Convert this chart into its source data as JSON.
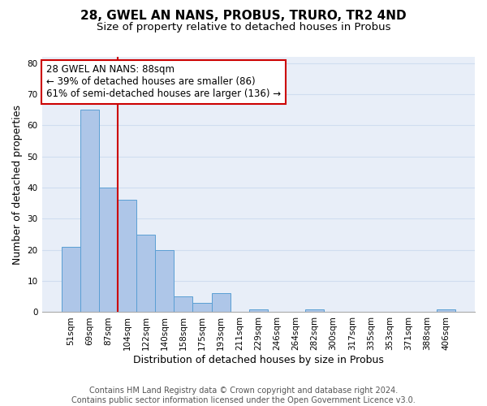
{
  "title": "28, GWEL AN NANS, PROBUS, TRURO, TR2 4ND",
  "subtitle": "Size of property relative to detached houses in Probus",
  "xlabel": "Distribution of detached houses by size in Probus",
  "ylabel": "Number of detached properties",
  "bar_labels": [
    "51sqm",
    "69sqm",
    "87sqm",
    "104sqm",
    "122sqm",
    "140sqm",
    "158sqm",
    "175sqm",
    "193sqm",
    "211sqm",
    "229sqm",
    "246sqm",
    "264sqm",
    "282sqm",
    "300sqm",
    "317sqm",
    "335sqm",
    "353sqm",
    "371sqm",
    "388sqm",
    "406sqm"
  ],
  "bar_values": [
    21,
    65,
    40,
    36,
    25,
    20,
    5,
    3,
    6,
    0,
    1,
    0,
    0,
    1,
    0,
    0,
    0,
    0,
    0,
    0,
    1
  ],
  "bar_color": "#aec6e8",
  "bar_edge_color": "#5a9fd4",
  "vline_index": 2,
  "vline_color": "#cc0000",
  "annotation_text": "28 GWEL AN NANS: 88sqm\n← 39% of detached houses are smaller (86)\n61% of semi-detached houses are larger (136) →",
  "annotation_box_color": "#ffffff",
  "annotation_box_edge_color": "#cc0000",
  "ylim": [
    0,
    82
  ],
  "yticks": [
    0,
    10,
    20,
    30,
    40,
    50,
    60,
    70,
    80
  ],
  "grid_color": "#d0ddf0",
  "background_color": "#e8eef8",
  "footer_text": "Contains HM Land Registry data © Crown copyright and database right 2024.\nContains public sector information licensed under the Open Government Licence v3.0.",
  "title_fontsize": 11,
  "subtitle_fontsize": 9.5,
  "xlabel_fontsize": 9,
  "ylabel_fontsize": 9,
  "tick_fontsize": 7.5,
  "annotation_fontsize": 8.5,
  "footer_fontsize": 7
}
